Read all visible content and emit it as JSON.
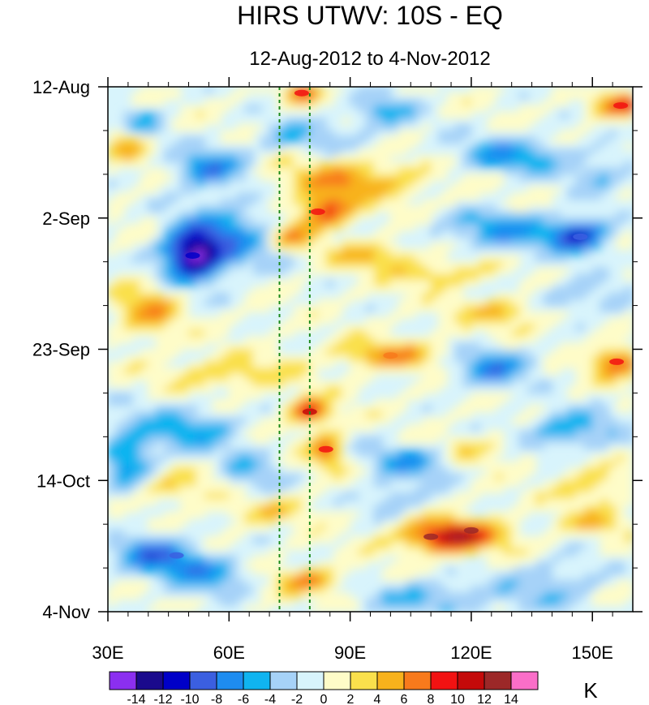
{
  "chart_data": {
    "type": "heatmap",
    "title": "HIRS UTWV: 10S - EQ",
    "subtitle": "12-Aug-2012 to 4-Nov-2012",
    "units": "K",
    "xlabel": "",
    "ylabel": "",
    "x_range": [
      30,
      160
    ],
    "x_ticks": [
      {
        "value": 30,
        "label": "30E"
      },
      {
        "value": 60,
        "label": "60E"
      },
      {
        "value": 90,
        "label": "90E"
      },
      {
        "value": 120,
        "label": "120E"
      },
      {
        "value": 150,
        "label": "150E"
      }
    ],
    "y_range_days": [
      0,
      84
    ],
    "y_ticks": [
      {
        "day": 0,
        "label": "12-Aug"
      },
      {
        "day": 21,
        "label": "2-Sep"
      },
      {
        "day": 42,
        "label": "23-Sep"
      },
      {
        "day": 63,
        "label": "14-Oct"
      },
      {
        "day": 84,
        "label": "4-Nov"
      }
    ],
    "reference_lines_lon": [
      72.5,
      80
    ],
    "colorbar": {
      "colors": [
        "#8b2ff0",
        "#1a0a8c",
        "#0000c8",
        "#3b5fe0",
        "#1e8cf0",
        "#10b4f0",
        "#a6d2f8",
        "#d8f4fc",
        "#fefcc8",
        "#fae04c",
        "#f8b21c",
        "#f87a1c",
        "#f21212",
        "#c40a0a",
        "#9c2828",
        "#fa6ec8"
      ],
      "labels": [
        "-14",
        "-12",
        "-10",
        "-8",
        "-6",
        "-4",
        "-2",
        "0",
        "2",
        "4",
        "6",
        "8",
        "10",
        "12",
        "14"
      ]
    },
    "field_features": [
      {
        "lon": 51,
        "day": 27,
        "value": -12
      },
      {
        "lon": 82,
        "day": 20,
        "value": 9
      },
      {
        "lon": 110,
        "day": 72,
        "value": 13
      },
      {
        "lon": 120,
        "day": 71,
        "value": 12
      },
      {
        "lon": 80,
        "day": 52,
        "value": 10
      },
      {
        "lon": 156,
        "day": 44,
        "value": 9
      },
      {
        "lon": 157,
        "day": 3,
        "value": 8
      },
      {
        "lon": 147,
        "day": 24,
        "value": -10
      },
      {
        "lon": 47,
        "day": 75,
        "value": -10
      },
      {
        "lon": 78,
        "day": 1,
        "value": 8
      },
      {
        "lon": 100,
        "day": 43,
        "value": 7
      },
      {
        "lon": 84,
        "day": 58,
        "value": 8
      }
    ]
  }
}
